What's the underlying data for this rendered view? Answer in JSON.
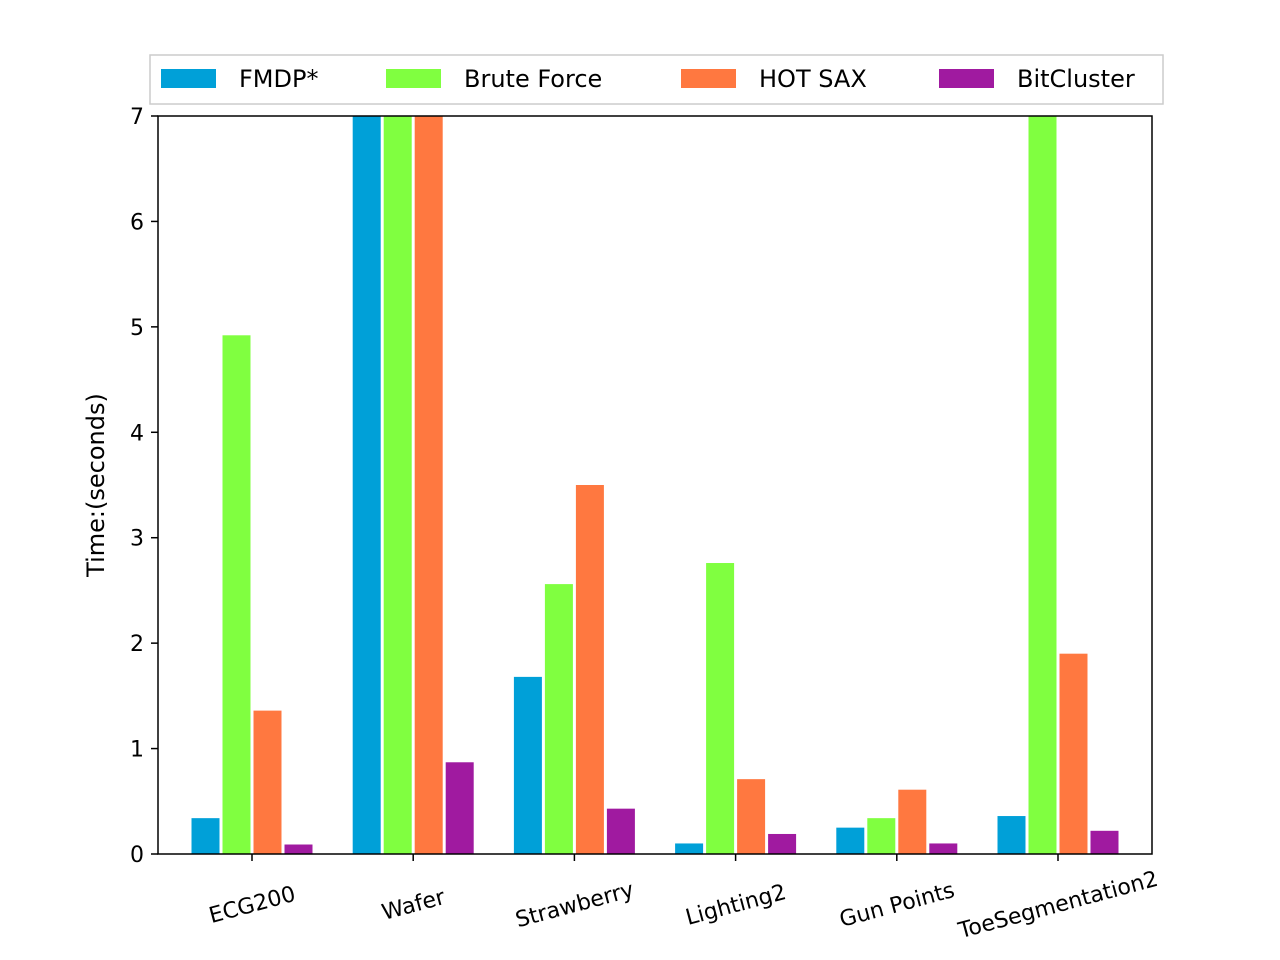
{
  "chart_data": {
    "type": "bar",
    "title": "",
    "xlabel": "",
    "ylabel": "Time:(seconds)",
    "ylim": [
      0,
      7
    ],
    "yticks": [
      0,
      1,
      2,
      3,
      4,
      5,
      6,
      7
    ],
    "grid": false,
    "legend_position": "top",
    "categories": [
      "ECG200",
      "Wafer",
      "Strawberry",
      "Lighting2",
      "Gun Points",
      "ToeSegmentation2"
    ],
    "series": [
      {
        "name": "FMDP*",
        "color": "#00a0d8",
        "values": [
          0.34,
          7.0,
          1.68,
          0.1,
          0.25,
          0.36
        ]
      },
      {
        "name": "Brute Force",
        "color": "#80ff40",
        "values": [
          4.92,
          7.0,
          2.56,
          2.76,
          0.34,
          7.0
        ]
      },
      {
        "name": "HOT SAX",
        "color": "#ff7840",
        "values": [
          1.36,
          7.0,
          3.5,
          0.71,
          0.61,
          1.9
        ]
      },
      {
        "name": "BitCluster",
        "color": "#a01aa0",
        "values": [
          0.09,
          0.87,
          0.43,
          0.19,
          0.1,
          0.22
        ]
      }
    ]
  }
}
